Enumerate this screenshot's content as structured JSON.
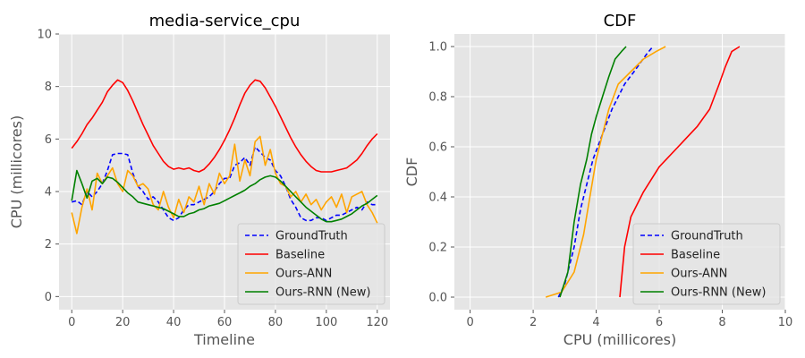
{
  "chart_data": [
    {
      "type": "line",
      "title": "media-service_cpu",
      "xlabel": "Timeline",
      "ylabel": "CPU (millicores)",
      "xlim": [
        -5,
        125
      ],
      "ylim": [
        -0.5,
        10
      ],
      "xticks": [
        0,
        20,
        40,
        60,
        80,
        100,
        120
      ],
      "yticks": [
        0,
        2,
        4,
        6,
        8,
        10
      ],
      "grid": true,
      "legend_position": "lower-right",
      "series": [
        {
          "name": "GroundTruth",
          "color": "#0000ff",
          "dash": "dashed",
          "x": [
            0,
            2,
            4,
            6,
            8,
            10,
            12,
            14,
            16,
            18,
            20,
            22,
            24,
            26,
            28,
            30,
            32,
            34,
            36,
            38,
            40,
            42,
            44,
            46,
            48,
            50,
            52,
            54,
            56,
            58,
            60,
            62,
            64,
            66,
            68,
            70,
            72,
            74,
            76,
            78,
            80,
            82,
            84,
            86,
            88,
            90,
            92,
            94,
            96,
            98,
            100,
            102,
            104,
            106,
            108,
            110,
            112,
            114,
            116,
            118,
            120
          ],
          "values": [
            3.6,
            3.65,
            3.5,
            4.0,
            3.8,
            4.0,
            4.3,
            4.8,
            5.4,
            5.45,
            5.45,
            5.4,
            4.7,
            4.2,
            4.0,
            3.7,
            3.8,
            3.6,
            3.3,
            3.0,
            2.9,
            3.0,
            3.3,
            3.5,
            3.5,
            3.6,
            3.7,
            3.8,
            4.0,
            4.3,
            4.5,
            4.5,
            5.0,
            5.1,
            5.3,
            5.0,
            5.7,
            5.5,
            5.3,
            5.2,
            4.8,
            4.6,
            4.2,
            3.7,
            3.4,
            3.0,
            2.9,
            2.9,
            3.0,
            3.0,
            2.9,
            3.0,
            3.1,
            3.1,
            3.2,
            3.3,
            3.4,
            3.3,
            3.6,
            3.5,
            3.5
          ]
        },
        {
          "name": "Baseline",
          "color": "#ff0000",
          "dash": "solid",
          "x": [
            0,
            2,
            4,
            6,
            8,
            10,
            12,
            14,
            16,
            18,
            20,
            22,
            24,
            26,
            28,
            30,
            32,
            34,
            36,
            38,
            40,
            42,
            44,
            46,
            48,
            50,
            52,
            54,
            56,
            58,
            60,
            62,
            64,
            66,
            68,
            70,
            72,
            74,
            76,
            78,
            80,
            82,
            84,
            86,
            88,
            90,
            92,
            94,
            96,
            98,
            100,
            102,
            104,
            106,
            108,
            110,
            112,
            114,
            116,
            118,
            120
          ],
          "values": [
            5.65,
            5.9,
            6.2,
            6.55,
            6.8,
            7.1,
            7.4,
            7.8,
            8.05,
            8.25,
            8.15,
            7.85,
            7.45,
            7.0,
            6.55,
            6.15,
            5.75,
            5.45,
            5.15,
            4.95,
            4.85,
            4.9,
            4.85,
            4.9,
            4.8,
            4.75,
            4.85,
            5.05,
            5.3,
            5.6,
            5.95,
            6.35,
            6.8,
            7.3,
            7.75,
            8.05,
            8.25,
            8.2,
            7.95,
            7.6,
            7.25,
            6.85,
            6.45,
            6.05,
            5.7,
            5.4,
            5.15,
            4.95,
            4.8,
            4.75,
            4.75,
            4.75,
            4.8,
            4.85,
            4.9,
            5.05,
            5.2,
            5.45,
            5.75,
            6.0,
            6.2
          ]
        },
        {
          "name": "Ours-ANN",
          "color": "#ffa500",
          "dash": "solid",
          "x": [
            0,
            2,
            4,
            6,
            8,
            10,
            12,
            14,
            16,
            18,
            20,
            22,
            24,
            26,
            28,
            30,
            32,
            34,
            36,
            38,
            40,
            42,
            44,
            46,
            48,
            50,
            52,
            54,
            56,
            58,
            60,
            62,
            64,
            66,
            68,
            70,
            72,
            74,
            76,
            78,
            80,
            82,
            84,
            86,
            88,
            90,
            92,
            94,
            96,
            98,
            100,
            102,
            104,
            106,
            108,
            110,
            112,
            114,
            116,
            118,
            120
          ],
          "values": [
            3.2,
            2.4,
            3.4,
            4.1,
            3.3,
            4.7,
            4.3,
            4.6,
            4.9,
            4.3,
            4.0,
            4.8,
            4.6,
            4.2,
            4.3,
            4.1,
            3.5,
            3.3,
            4.0,
            3.4,
            3.0,
            3.7,
            3.2,
            3.8,
            3.6,
            4.2,
            3.5,
            4.3,
            3.9,
            4.7,
            4.3,
            4.6,
            5.8,
            4.4,
            5.2,
            4.6,
            5.9,
            6.1,
            5.0,
            5.6,
            4.7,
            4.3,
            4.2,
            3.8,
            4.0,
            3.6,
            3.9,
            3.5,
            3.7,
            3.3,
            3.6,
            3.8,
            3.4,
            3.9,
            3.2,
            3.8,
            3.9,
            4.0,
            3.5,
            3.2,
            2.8
          ]
        },
        {
          "name": "Ours-RNN (New)",
          "color": "#008000",
          "dash": "solid",
          "x": [
            0,
            2,
            4,
            6,
            8,
            10,
            12,
            14,
            16,
            18,
            20,
            22,
            24,
            26,
            28,
            30,
            32,
            34,
            36,
            38,
            40,
            42,
            44,
            46,
            48,
            50,
            52,
            54,
            56,
            58,
            60,
            62,
            64,
            66,
            68,
            70,
            72,
            74,
            76,
            78,
            80,
            82,
            84,
            86,
            88,
            90,
            92,
            94,
            96,
            98,
            100,
            102,
            104,
            106,
            108,
            110,
            112,
            114,
            116,
            118,
            120
          ],
          "values": [
            3.65,
            4.8,
            4.3,
            3.75,
            4.4,
            4.5,
            4.3,
            4.55,
            4.5,
            4.35,
            4.15,
            3.95,
            3.8,
            3.6,
            3.55,
            3.5,
            3.45,
            3.4,
            3.35,
            3.25,
            3.15,
            3.05,
            3.05,
            3.15,
            3.2,
            3.3,
            3.35,
            3.45,
            3.5,
            3.55,
            3.65,
            3.75,
            3.85,
            3.95,
            4.05,
            4.2,
            4.3,
            4.45,
            4.55,
            4.6,
            4.55,
            4.4,
            4.2,
            4.0,
            3.8,
            3.6,
            3.4,
            3.25,
            3.1,
            2.95,
            2.85,
            2.85,
            2.9,
            2.95,
            3.05,
            3.15,
            3.3,
            3.45,
            3.55,
            3.7,
            3.85
          ]
        }
      ]
    },
    {
      "type": "line",
      "title": "CDF",
      "xlabel": "CPU (millicores)",
      "ylabel": "CDF",
      "xlim": [
        -0.5,
        10
      ],
      "ylim": [
        -0.05,
        1.05
      ],
      "xticks": [
        0,
        2,
        4,
        6,
        8,
        10
      ],
      "yticks": [
        0.0,
        0.2,
        0.4,
        0.6,
        0.8,
        1.0
      ],
      "grid": true,
      "legend_position": "lower-right",
      "series": [
        {
          "name": "GroundTruth",
          "color": "#0000ff",
          "dash": "dashed",
          "x": [
            2.8,
            3.0,
            3.3,
            3.5,
            3.7,
            3.9,
            4.2,
            4.5,
            4.9,
            5.2,
            5.6,
            5.8
          ],
          "values": [
            0.0,
            0.05,
            0.2,
            0.35,
            0.45,
            0.55,
            0.65,
            0.75,
            0.85,
            0.9,
            0.97,
            1.0
          ]
        },
        {
          "name": "Baseline",
          "color": "#ff0000",
          "dash": "solid",
          "x": [
            4.75,
            4.9,
            5.1,
            5.5,
            6.0,
            6.6,
            7.2,
            7.6,
            7.9,
            8.1,
            8.3,
            8.55
          ],
          "values": [
            0.0,
            0.2,
            0.32,
            0.42,
            0.52,
            0.6,
            0.68,
            0.75,
            0.85,
            0.92,
            0.98,
            1.0
          ]
        },
        {
          "name": "Ours-ANN",
          "color": "#ffa500",
          "dash": "solid",
          "x": [
            2.4,
            2.9,
            3.3,
            3.6,
            3.8,
            4.0,
            4.2,
            4.4,
            4.7,
            5.1,
            5.5,
            5.9,
            6.2
          ],
          "values": [
            0.0,
            0.02,
            0.1,
            0.25,
            0.4,
            0.55,
            0.65,
            0.75,
            0.85,
            0.9,
            0.95,
            0.98,
            1.0
          ]
        },
        {
          "name": "Ours-RNN (New)",
          "color": "#008000",
          "dash": "solid",
          "x": [
            2.85,
            3.1,
            3.3,
            3.5,
            3.7,
            3.85,
            4.0,
            4.2,
            4.4,
            4.6,
            4.8,
            4.95
          ],
          "values": [
            0.0,
            0.1,
            0.3,
            0.45,
            0.55,
            0.65,
            0.72,
            0.8,
            0.88,
            0.95,
            0.98,
            1.0
          ]
        }
      ]
    }
  ]
}
